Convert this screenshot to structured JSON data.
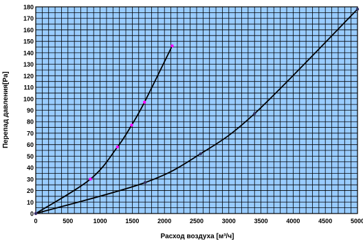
{
  "chart_data": {
    "type": "line",
    "title": "",
    "xlabel": "Расход воздуха [м³/ч]",
    "ylabel": "Перепад давления[Pa]",
    "xlim": [
      0,
      5000
    ],
    "ylim": [
      0,
      180
    ],
    "x_ticks": [
      0,
      500,
      1000,
      1500,
      2000,
      2500,
      3000,
      3500,
      4000,
      4500,
      5000
    ],
    "y_ticks": [
      0,
      10,
      20,
      30,
      40,
      50,
      60,
      70,
      80,
      90,
      100,
      110,
      120,
      130,
      140,
      150,
      160,
      170,
      180
    ],
    "grid": true,
    "minor_x_step": 100,
    "minor_y_step": 5,
    "plot_background": "#99ccff",
    "grid_color": "#000000",
    "legend": "none",
    "series": [
      {
        "color": "#000000",
        "marker_color": "#ff00ff",
        "points": [
          {
            "x": 0,
            "y": 0
          },
          {
            "x": 850,
            "y": 30
          },
          {
            "x": 1270,
            "y": 58
          },
          {
            "x": 1490,
            "y": 77
          },
          {
            "x": 1690,
            "y": 97
          },
          {
            "x": 2120,
            "y": 146
          }
        ]
      },
      {
        "color": "#000000",
        "marker_color": "#333366",
        "points": [
          {
            "x": 0,
            "y": 0
          },
          {
            "x": 1700,
            "y": 27
          },
          {
            "x": 2560,
            "y": 52
          },
          {
            "x": 3400,
            "y": 87
          },
          {
            "x": 5000,
            "y": 178
          }
        ]
      }
    ]
  }
}
